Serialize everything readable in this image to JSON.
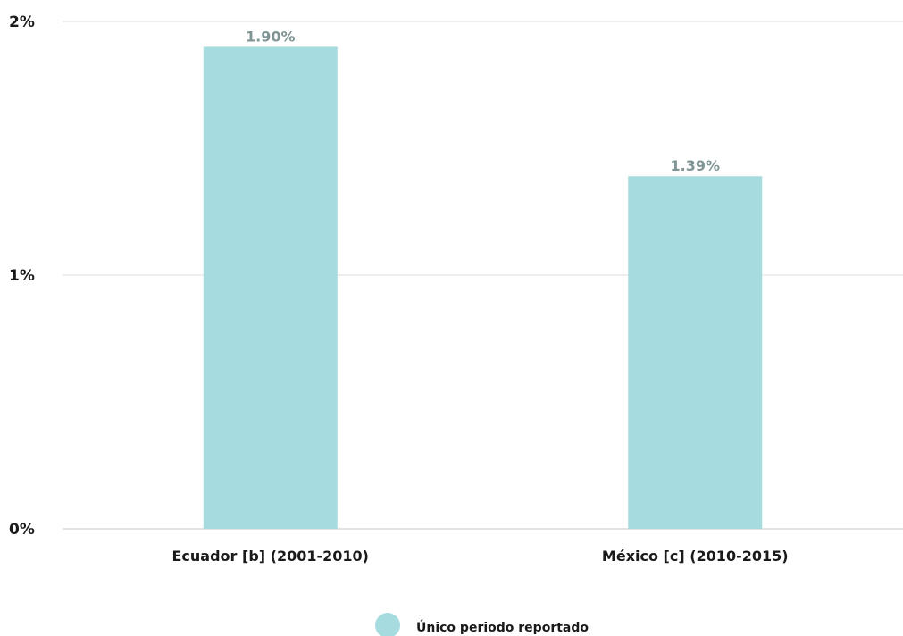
{
  "chart_data": {
    "type": "bar",
    "categories": [
      "Ecuador [b] (2001-2010)",
      "México [c] (2010-2015)"
    ],
    "series": [
      {
        "name": "Único periodo reportado",
        "values": [
          1.9,
          1.39
        ],
        "color": "#a6dbdf"
      }
    ],
    "data_labels": [
      "1.90%",
      "1.39%"
    ],
    "yticks": [
      {
        "value": 0,
        "label": "0%"
      },
      {
        "value": 1,
        "label": "1%"
      },
      {
        "value": 2,
        "label": "2%"
      }
    ],
    "ylim": [
      0,
      2
    ],
    "grid": true,
    "legend": {
      "position": "bottom-center",
      "label": "Único periodo reportado"
    },
    "title": "",
    "xlabel": "",
    "ylabel": ""
  }
}
